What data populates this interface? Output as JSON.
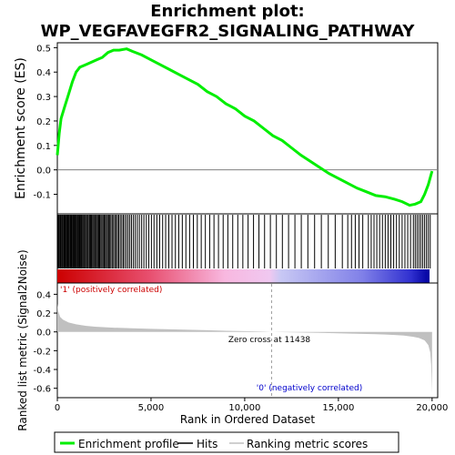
{
  "title_line1": "Enrichment plot:",
  "title_line2": "WP_VEGFAVEGFR2_SIGNALING_PATHWAY",
  "colors": {
    "es_line": "#00ee00",
    "hits": "#000000",
    "metric_fill": "#c0c0c0",
    "zero_line": "#808080",
    "pos_label": "#cc0000",
    "neg_label": "#0000cc",
    "frame": "#000000"
  },
  "chart_data": [
    {
      "type": "line",
      "name": "enrichment-profile",
      "ylabel": "Enrichment score (ES)",
      "ylim": [
        -0.18,
        0.52
      ],
      "yticks": [
        -0.1,
        0.0,
        0.1,
        0.2,
        0.3,
        0.4,
        0.5
      ],
      "ytick_labels": [
        "-0.1",
        "0.0",
        "0.1",
        "0.2",
        "0.3",
        "0.4",
        "0.5"
      ],
      "xlim": [
        0,
        20300
      ],
      "series": [
        {
          "name": "Enrichment profile",
          "x": [
            0,
            100,
            200,
            400,
            600,
            800,
            1000,
            1200,
            1500,
            1800,
            2100,
            2400,
            2700,
            3000,
            3300,
            3700,
            4000,
            4500,
            5000,
            5500,
            6000,
            6500,
            7000,
            7500,
            8000,
            8500,
            9000,
            9500,
            10000,
            10500,
            11000,
            11500,
            12000,
            12500,
            13000,
            13500,
            14000,
            14500,
            15000,
            15500,
            16000,
            16500,
            17000,
            17500,
            18000,
            18400,
            18800,
            19100,
            19400,
            19600,
            19800,
            20000
          ],
          "y": [
            0.06,
            0.15,
            0.21,
            0.26,
            0.31,
            0.36,
            0.4,
            0.42,
            0.43,
            0.44,
            0.45,
            0.46,
            0.48,
            0.49,
            0.49,
            0.495,
            0.485,
            0.47,
            0.45,
            0.43,
            0.41,
            0.39,
            0.37,
            0.35,
            0.32,
            0.3,
            0.27,
            0.25,
            0.22,
            0.2,
            0.17,
            0.14,
            0.12,
            0.09,
            0.06,
            0.035,
            0.01,
            -0.015,
            -0.035,
            -0.055,
            -0.075,
            -0.09,
            -0.105,
            -0.11,
            -0.12,
            -0.13,
            -0.145,
            -0.14,
            -0.13,
            -0.1,
            -0.06,
            -0.005
          ]
        }
      ]
    },
    {
      "type": "bar",
      "name": "hits",
      "label": "Hits",
      "hit_ranks": [
        40,
        80,
        130,
        170,
        210,
        260,
        300,
        350,
        390,
        430,
        480,
        520,
        560,
        600,
        640,
        690,
        730,
        770,
        820,
        860,
        900,
        950,
        990,
        1030,
        1080,
        1120,
        1170,
        1210,
        1260,
        1300,
        1350,
        1400,
        1450,
        1500,
        1560,
        1610,
        1660,
        1720,
        1770,
        1820,
        1880,
        1930,
        1990,
        2040,
        2100,
        2150,
        2210,
        2260,
        2320,
        2380,
        2440,
        2500,
        2560,
        2620,
        2680,
        2740,
        2800,
        2860,
        2930,
        3000,
        3070,
        3140,
        3210,
        3280,
        3360,
        3440,
        3520,
        3600,
        3690,
        3780,
        3870,
        3960,
        4060,
        4160,
        4270,
        4380,
        4500,
        4620,
        4750,
        4880,
        5020,
        5160,
        5310,
        5460,
        5620,
        5780,
        5950,
        6120,
        6300,
        6480,
        6670,
        6860,
        7060,
        7260,
        7470,
        7680,
        7900,
        8130,
        8360,
        8600,
        8850,
        9100,
        9360,
        9630,
        9900,
        10180,
        10470,
        10760,
        11060,
        11370,
        11690,
        12010,
        12340,
        12680,
        13020,
        13370,
        13730,
        14090,
        14460,
        14830,
        15210,
        15500,
        15700,
        15900,
        16100,
        16300,
        16600,
        16750,
        16900,
        17050,
        17200,
        17350,
        17500,
        17650,
        17800,
        17950,
        18100,
        18250,
        18400,
        18550,
        18700,
        18850,
        19000,
        19100,
        19200,
        19300,
        19400,
        19500,
        19600,
        19700,
        19800,
        19900
      ]
    },
    {
      "type": "area",
      "name": "ranked-list-metric",
      "ylabel": "Ranked list metric (Signal2Noise)",
      "xlabel": "Rank in Ordered Dataset",
      "ylim": [
        -0.7,
        0.52
      ],
      "yticks": [
        -0.6,
        -0.4,
        -0.2,
        0.0,
        0.2,
        0.4
      ],
      "ytick_labels": [
        "-0.6",
        "-0.4",
        "-0.2",
        "0.0",
        "0.2",
        "0.4"
      ],
      "xticks": [
        0,
        5000,
        10000,
        15000,
        20000
      ],
      "xtick_labels": [
        "0",
        "5,000",
        "10,000",
        "15,000",
        "20,000"
      ],
      "xlim": [
        0,
        20300
      ],
      "x": [
        0,
        50,
        150,
        300,
        600,
        1000,
        1500,
        2000,
        3000,
        4000,
        5000,
        6000,
        7000,
        8000,
        9000,
        10000,
        11000,
        11438,
        12000,
        13000,
        14000,
        15000,
        16000,
        17000,
        17500,
        18000,
        18500,
        19000,
        19300,
        19600,
        19800,
        19900,
        19950,
        20000
      ],
      "y": [
        0.3,
        0.22,
        0.16,
        0.13,
        0.1,
        0.08,
        0.065,
        0.055,
        0.045,
        0.038,
        0.032,
        0.027,
        0.022,
        0.017,
        0.012,
        0.008,
        0.003,
        0.0,
        -0.003,
        -0.007,
        -0.011,
        -0.015,
        -0.019,
        -0.024,
        -0.028,
        -0.033,
        -0.04,
        -0.052,
        -0.065,
        -0.09,
        -0.14,
        -0.22,
        -0.35,
        -0.65
      ],
      "zero_cross_rank": 11438,
      "annotations": {
        "pos": "'1' (positively correlated)",
        "zero": "Zero cross at 11438",
        "neg": "'0' (negatively correlated)"
      }
    }
  ],
  "legend": {
    "items": [
      {
        "label": "Enrichment profile"
      },
      {
        "label": "Hits"
      },
      {
        "label": "Ranking metric scores"
      }
    ]
  }
}
